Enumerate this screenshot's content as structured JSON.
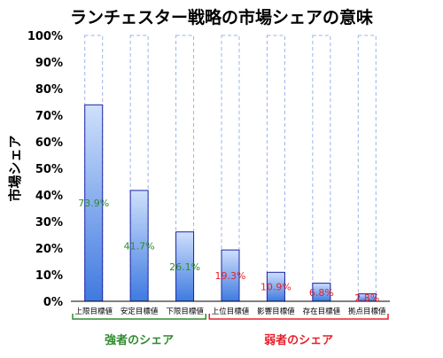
{
  "chart_data": {
    "type": "bar",
    "title": "ランチェスター戦略の市場シェアの意味",
    "ylabel": "市場シェア",
    "xlabel": "",
    "ylim": [
      0,
      100
    ],
    "yticks": [
      "0%",
      "10%",
      "20%",
      "30%",
      "40%",
      "50%",
      "60%",
      "70%",
      "80%",
      "90%",
      "100%"
    ],
    "categories": [
      "上限目標値",
      "安定目標値",
      "下限目標値",
      "上位目標値",
      "影響目標値",
      "存在目標値",
      "拠点目標値"
    ],
    "values": [
      73.9,
      41.7,
      26.1,
      19.3,
      10.9,
      6.8,
      2.8
    ],
    "data_labels": [
      "73.9%",
      "41.7%",
      "26.1%",
      "19.3%",
      "10.9%",
      "6.8%",
      "2.8%"
    ],
    "background_max": 100,
    "grid": false,
    "groups": [
      {
        "label": "強者のシェア",
        "start": 0,
        "end": 2,
        "color": "#2e8b2e"
      },
      {
        "label": "弱者のシェア",
        "start": 3,
        "end": 6,
        "color": "#e8202a"
      }
    ],
    "label_colors": [
      "#2e8b2e",
      "#2e8b2e",
      "#2e8b2e",
      "#e8202a",
      "#e8202a",
      "#e8202a",
      "#e8202a"
    ],
    "bar_color_top": "#cfe0fb",
    "bar_color_bottom": "#3f7ae0",
    "bar_border": "#1a24a8",
    "background_border": "#9bb4ea"
  }
}
